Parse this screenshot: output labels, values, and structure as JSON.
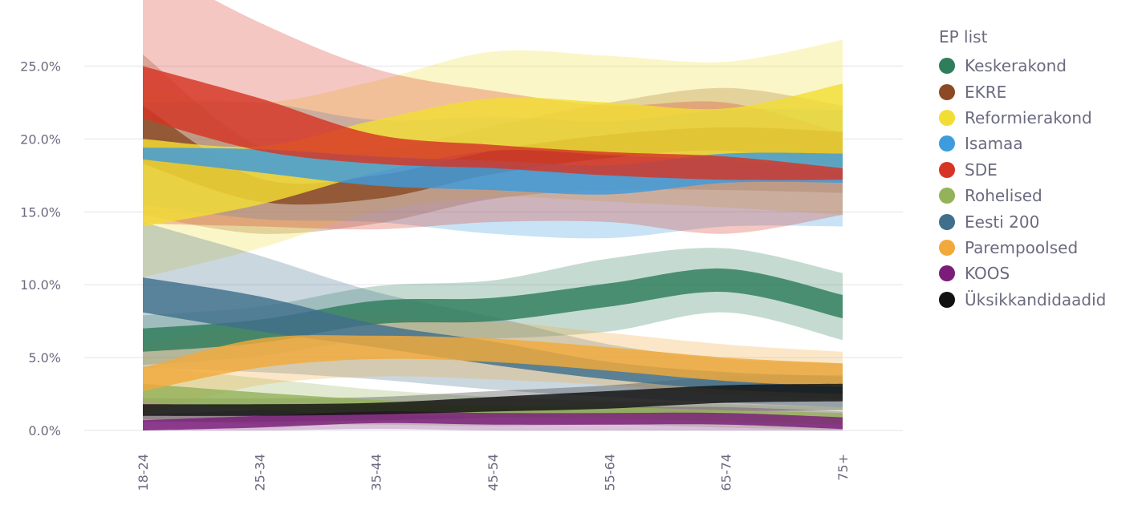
{
  "chart_data": {
    "type": "area",
    "x": [
      "18-24",
      "25-34",
      "35-44",
      "45-54",
      "55-64",
      "65-74",
      "75+"
    ],
    "ylim": [
      0,
      0.28
    ],
    "yticks": [
      "0.0%",
      "5.0%",
      "10.0%",
      "15.0%",
      "20.0%",
      "25.0%"
    ],
    "ytick_values": [
      0,
      0.05,
      0.1,
      0.15,
      0.2,
      0.25
    ],
    "grid": true,
    "legend_title": "EP list",
    "legend_position": "right",
    "series": [
      {
        "name": "Keskerakond",
        "color": "#2e7d5b",
        "mid": [
          0.062,
          0.068,
          0.081,
          0.083,
          0.093,
          0.103,
          0.085
        ],
        "band": [
          0.008,
          0.008,
          0.008,
          0.008,
          0.008,
          0.008,
          0.008
        ],
        "ci": [
          0.017,
          0.017,
          0.018,
          0.02,
          0.025,
          0.022,
          0.023
        ]
      },
      {
        "name": "EKRE",
        "color": "#8b4a24",
        "mid": [
          0.203,
          0.165,
          0.167,
          0.184,
          0.195,
          0.2,
          0.193
        ],
        "band": [
          0.02,
          0.008,
          0.008,
          0.008,
          0.008,
          0.008,
          0.012
        ],
        "ci": [
          0.055,
          0.03,
          0.025,
          0.025,
          0.03,
          0.035,
          0.03
        ]
      },
      {
        "name": "Reformierakond",
        "color": "#f2dd35",
        "mid": [
          0.17,
          0.175,
          0.195,
          0.21,
          0.207,
          0.203,
          0.208
        ],
        "band": [
          0.03,
          0.02,
          0.018,
          0.018,
          0.018,
          0.018,
          0.03
        ],
        "ci": [
          0.065,
          0.05,
          0.045,
          0.05,
          0.05,
          0.05,
          0.06
        ]
      },
      {
        "name": "Isamaa",
        "color": "#3d9bde",
        "mid": [
          0.19,
          0.185,
          0.178,
          0.175,
          0.172,
          0.18,
          0.18
        ],
        "band": [
          0.004,
          0.008,
          0.01,
          0.01,
          0.01,
          0.01,
          0.01
        ],
        "ci": [
          0.035,
          0.04,
          0.035,
          0.04,
          0.04,
          0.04,
          0.04
        ]
      },
      {
        "name": "SDE",
        "color": "#d63524",
        "mid": [
          0.232,
          0.21,
          0.193,
          0.188,
          0.183,
          0.18,
          0.176
        ],
        "band": [
          0.018,
          0.018,
          0.01,
          0.008,
          0.008,
          0.008,
          0.004
        ],
        "ci": [
          0.09,
          0.07,
          0.055,
          0.045,
          0.04,
          0.045,
          0.028
        ]
      },
      {
        "name": "Rohelised",
        "color": "#94b25a",
        "mid": [
          0.026,
          0.02,
          0.016,
          0.013,
          0.012,
          0.01,
          0.008
        ],
        "band": [
          0.006,
          0.006,
          0.005,
          0.004,
          0.004,
          0.004,
          0.004
        ],
        "ci": [
          0.018,
          0.016,
          0.012,
          0.01,
          0.008,
          0.008,
          0.008
        ]
      },
      {
        "name": "Eesti 200",
        "color": "#3f6f8c",
        "mid": [
          0.093,
          0.08,
          0.065,
          0.053,
          0.041,
          0.034,
          0.031
        ],
        "band": [
          0.012,
          0.012,
          0.008,
          0.008,
          0.006,
          0.006,
          0.006
        ],
        "ci": [
          0.05,
          0.04,
          0.03,
          0.025,
          0.018,
          0.015,
          0.015
        ]
      },
      {
        "name": "Parempoolsed",
        "color": "#f2a93b",
        "mid": [
          0.035,
          0.053,
          0.057,
          0.055,
          0.049,
          0.042,
          0.038
        ],
        "band": [
          0.008,
          0.01,
          0.008,
          0.008,
          0.008,
          0.008,
          0.008
        ],
        "ci": [
          0.024,
          0.022,
          0.02,
          0.02,
          0.018,
          0.017,
          0.016
        ]
      },
      {
        "name": "KOOS",
        "color": "#7a1d7a",
        "mid": [
          0.003,
          0.006,
          0.009,
          0.008,
          0.008,
          0.008,
          0.005
        ],
        "band": [
          0.004,
          0.004,
          0.004,
          0.004,
          0.004,
          0.004,
          0.004
        ],
        "ci": [
          0.008,
          0.008,
          0.008,
          0.008,
          0.008,
          0.008,
          0.008
        ]
      },
      {
        "name": "Üksikkandidaadid",
        "color": "#111111",
        "mid": [
          0.014,
          0.014,
          0.015,
          0.018,
          0.021,
          0.025,
          0.026
        ],
        "band": [
          0.004,
          0.004,
          0.004,
          0.005,
          0.006,
          0.006,
          0.006
        ],
        "ci": [
          0.008,
          0.008,
          0.008,
          0.009,
          0.01,
          0.012,
          0.012
        ]
      }
    ]
  }
}
